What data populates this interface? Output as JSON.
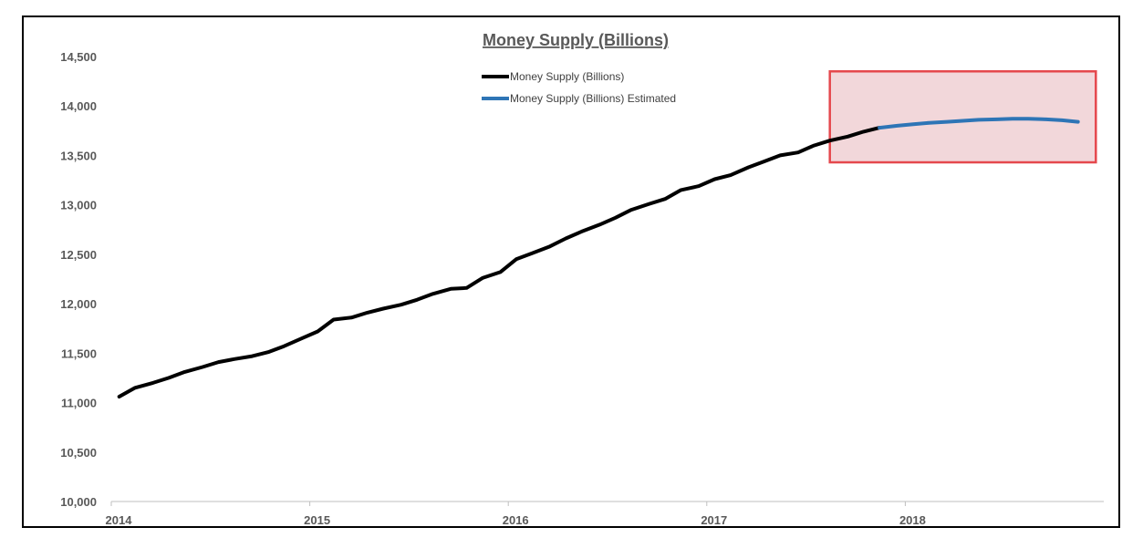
{
  "chart_data": {
    "type": "line",
    "title": "Money Supply (Billions)",
    "xlabel": "",
    "ylabel": "",
    "ylim": [
      10000,
      14500
    ],
    "yticks": [
      10000,
      10500,
      11000,
      11500,
      12000,
      12500,
      13000,
      13500,
      14000,
      14500
    ],
    "ytick_labels": [
      "10,000",
      "10,500",
      "11,000",
      "11,500",
      "12,000",
      "12,500",
      "13,000",
      "13,500",
      "14,000",
      "14,500"
    ],
    "xlim": [
      2014,
      2019
    ],
    "xticks": [
      2014,
      2015,
      2016,
      2017,
      2018
    ],
    "xtick_labels": [
      "2014",
      "2015",
      "2016",
      "2017",
      "2018"
    ],
    "grid": false,
    "legend_position": "top-center",
    "series": [
      {
        "name": "Money Supply (Billions)",
        "color": "#000000",
        "x": [
          2014.04,
          2014.12,
          2014.21,
          2014.29,
          2014.37,
          2014.46,
          2014.54,
          2014.62,
          2014.71,
          2014.79,
          2014.87,
          2014.96,
          2015.04,
          2015.12,
          2015.21,
          2015.29,
          2015.37,
          2015.46,
          2015.54,
          2015.62,
          2015.71,
          2015.79,
          2015.87,
          2015.96,
          2016.04,
          2016.12,
          2016.21,
          2016.29,
          2016.37,
          2016.46,
          2016.54,
          2016.62,
          2016.71,
          2016.79,
          2016.87,
          2016.96,
          2017.04,
          2017.12,
          2017.21,
          2017.29,
          2017.37,
          2017.46,
          2017.54,
          2017.62,
          2017.71,
          2017.79,
          2017.87
        ],
        "values": [
          11060,
          11150,
          11200,
          11250,
          11310,
          11360,
          11410,
          11440,
          11470,
          11510,
          11570,
          11650,
          11720,
          11840,
          11860,
          11910,
          11950,
          11990,
          12040,
          12100,
          12150,
          12160,
          12260,
          12320,
          12450,
          12510,
          12580,
          12660,
          12730,
          12800,
          12870,
          12950,
          13010,
          13060,
          13150,
          13190,
          13260,
          13300,
          13380,
          13440,
          13500,
          13530,
          13600,
          13650,
          13690,
          13740,
          13780
        ]
      },
      {
        "name": "Money Supply (Billions) Estimated",
        "color": "#2e75b6",
        "x": [
          2017.87,
          2017.96,
          2018.04,
          2018.12,
          2018.21,
          2018.29,
          2018.37,
          2018.46,
          2018.54,
          2018.62,
          2018.71,
          2018.79,
          2018.87
        ],
        "values": [
          13780,
          13800,
          13815,
          13830,
          13840,
          13850,
          13860,
          13865,
          13870,
          13870,
          13865,
          13855,
          13840
        ]
      }
    ],
    "highlight_box": {
      "x_range": [
        2017.62,
        2018.96
      ],
      "y_range": [
        13430,
        14350
      ],
      "fill": "#f2d7da",
      "stroke": "#e5484d"
    }
  }
}
